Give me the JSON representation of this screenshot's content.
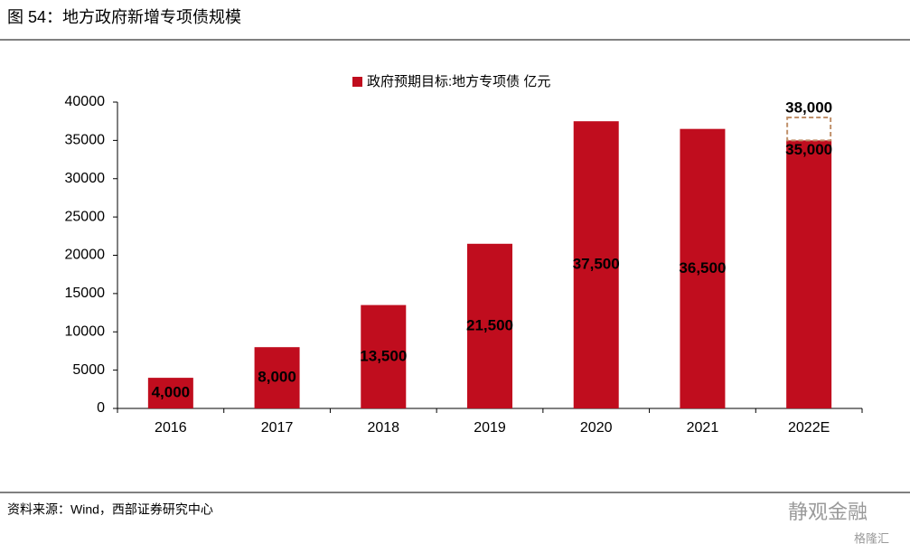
{
  "header": {
    "title": "图 54：地方政府新增专项债规模"
  },
  "chart_data": {
    "type": "bar",
    "categories": [
      "2016",
      "2017",
      "2018",
      "2019",
      "2020",
      "2021",
      "2022E"
    ],
    "series": [
      {
        "name": "政府预期目标:地方专项债 亿元",
        "color": "#c00d1e",
        "values": [
          4000,
          8000,
          13500,
          21500,
          37500,
          36500,
          35000
        ],
        "value_labels": [
          "4,000",
          "8,000",
          "13,500",
          "21,500",
          "37,500",
          "36,500",
          "35,000"
        ],
        "upper_values": [
          null,
          null,
          null,
          null,
          null,
          null,
          38000
        ],
        "upper_value_labels": [
          null,
          null,
          null,
          null,
          null,
          null,
          "38,000"
        ],
        "upper_color": "#c0906a"
      }
    ],
    "ylim": [
      0,
      40000
    ],
    "yticks": [
      0,
      5000,
      10000,
      15000,
      20000,
      25000,
      30000,
      35000,
      40000
    ],
    "grid": false,
    "legend": "top"
  },
  "footer": {
    "source": "资料来源：Wind，西部证券研究中心",
    "watermark": "静观金融",
    "logo": "格隆汇"
  }
}
